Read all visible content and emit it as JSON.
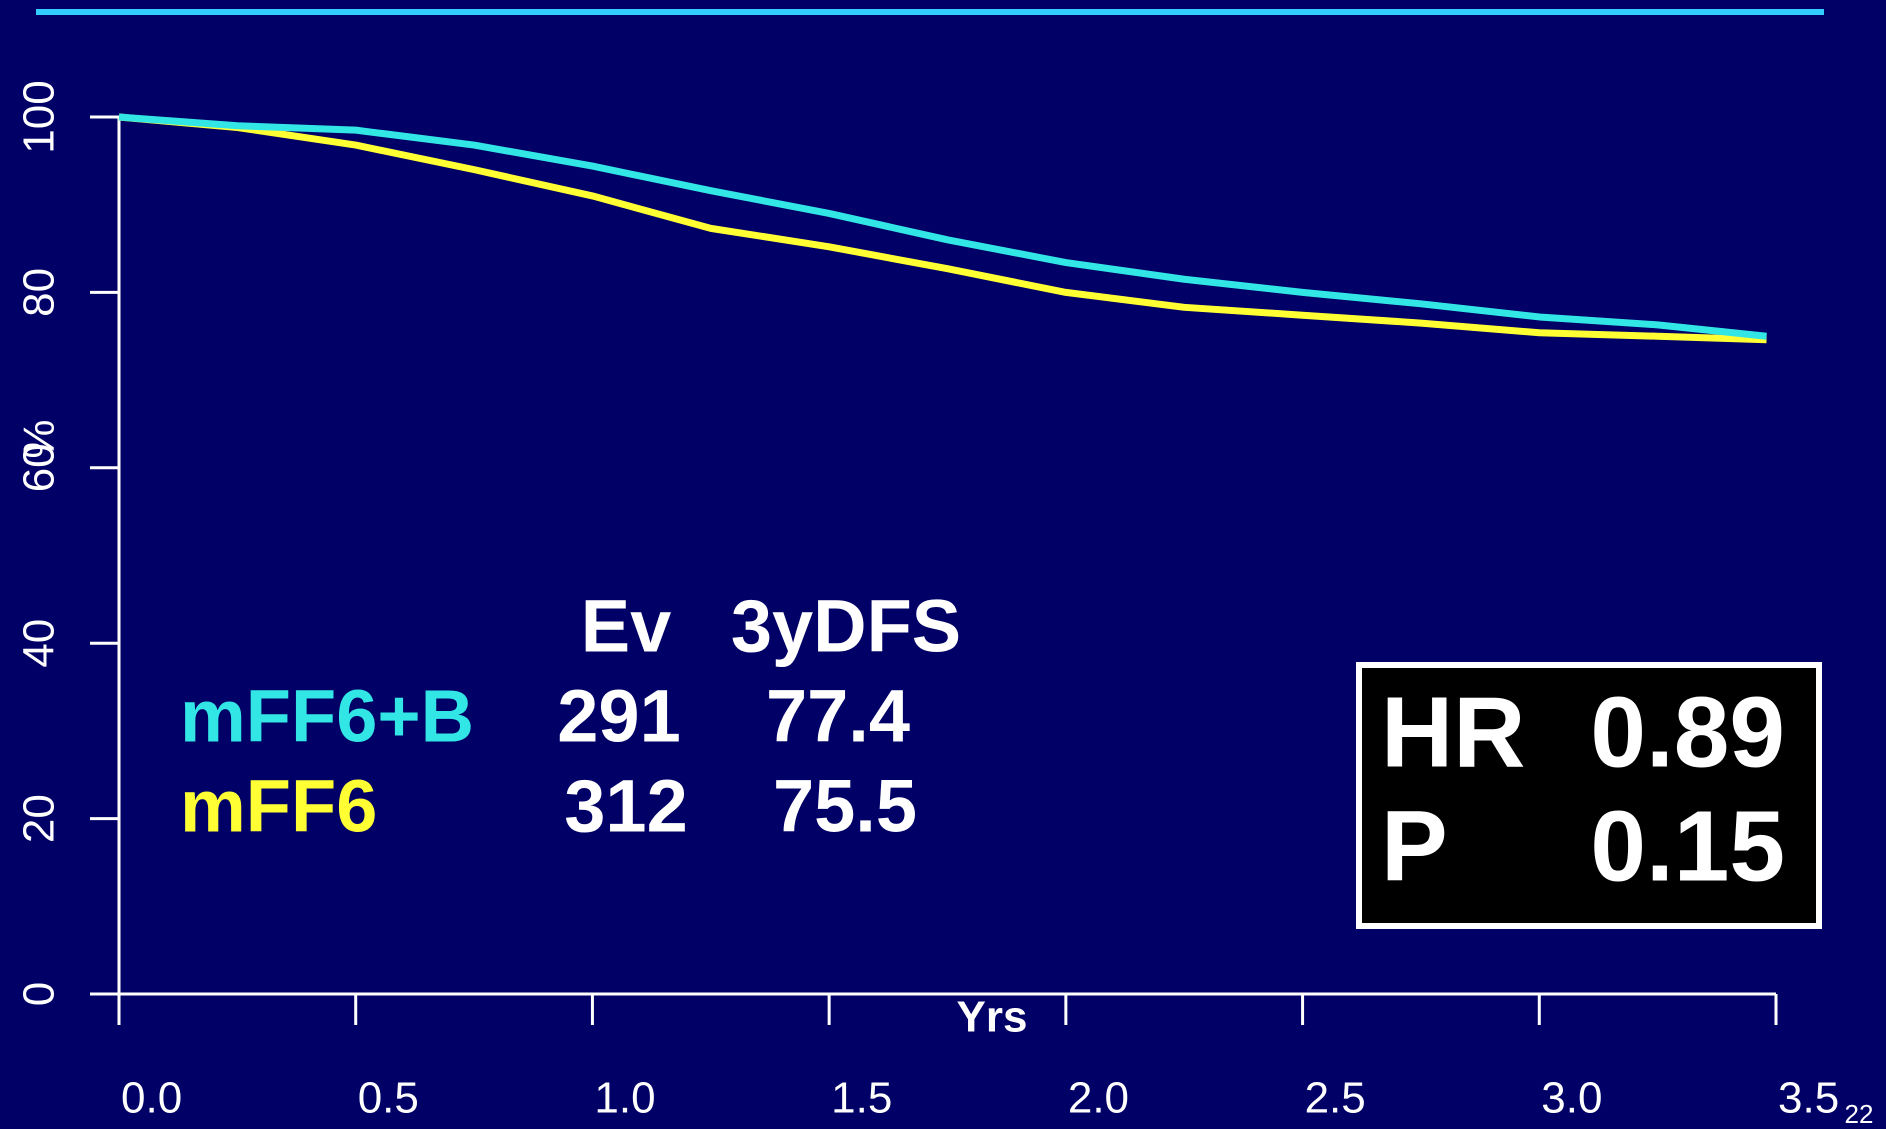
{
  "chart_data": {
    "type": "line",
    "xlabel": "Yrs",
    "ylabel": "%",
    "x": [
      0,
      0.25,
      0.5,
      0.75,
      1.0,
      1.25,
      1.5,
      1.75,
      2.0,
      2.25,
      2.5,
      2.75,
      3.0,
      3.25,
      3.48
    ],
    "series": [
      {
        "name": "mFF6+B",
        "color": "#33e6e6",
        "values": [
          100,
          99,
          98.5,
          96.8,
          94.4,
          91.6,
          89,
          86,
          83.4,
          81.5,
          80,
          78.7,
          77.2,
          76.3,
          75
        ]
      },
      {
        "name": "mFF6",
        "color": "#ffff33",
        "values": [
          100,
          98.8,
          96.8,
          94,
          91,
          87.3,
          85.2,
          82.7,
          80,
          78.3,
          77.4,
          76.5,
          75.4,
          75,
          74.6
        ]
      }
    ],
    "xlim": [
      0,
      3.5
    ],
    "ylim": [
      0,
      100
    ],
    "xticks": [
      {
        "value": 0,
        "label": "0.0"
      },
      0.5,
      {
        "value": 1,
        "label": "1.0"
      },
      1.5,
      {
        "value": 2,
        "label": "2.0"
      },
      2.5,
      {
        "value": 3,
        "label": "3.0"
      },
      3.5
    ],
    "yticks": [
      0,
      20,
      40,
      60,
      80,
      100
    ],
    "table": {
      "header": [
        "Ev",
        "3yDFS"
      ],
      "rows": [
        {
          "name": "mFF6+B",
          "values": [
            291,
            77.4
          ]
        },
        {
          "name": "mFF6",
          "values": [
            312,
            75.5
          ]
        }
      ]
    },
    "stats": [
      {
        "label": "HR",
        "value": 0.89
      },
      {
        "label": "P",
        "value": 0.15
      }
    ]
  },
  "page_number": "22"
}
